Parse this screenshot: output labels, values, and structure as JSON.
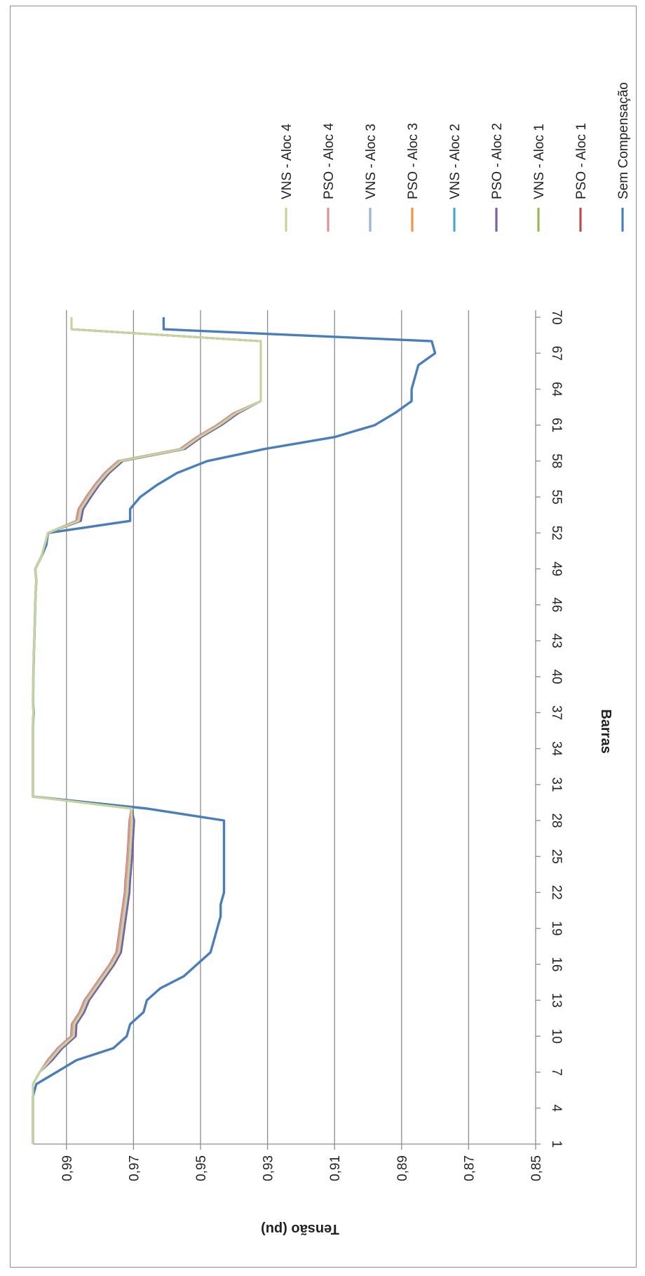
{
  "chart_data": {
    "type": "line",
    "title": "",
    "xlabel": "Barras",
    "ylabel": "Tensão  (pu)",
    "xlim": [
      1,
      70
    ],
    "ylim": [
      0.85,
      1.0
    ],
    "x_tick_labels": [
      "1",
      "4",
      "7",
      "10",
      "13",
      "16",
      "19",
      "22",
      "25",
      "28",
      "31",
      "34",
      "37",
      "40",
      "43",
      "46",
      "49",
      "52",
      "55",
      "58",
      "61",
      "64",
      "67",
      "70"
    ],
    "y_tick_labels": [
      "0,85",
      "0,87",
      "0,89",
      "0,91",
      "0,93",
      "0,95",
      "0,97",
      "0,99"
    ],
    "y_ticks": [
      0.85,
      0.87,
      0.89,
      0.91,
      0.93,
      0.95,
      0.97,
      0.99
    ],
    "grid": true,
    "legend_position": "right",
    "orientation": "rotated-90-clockwise",
    "x": [
      1,
      2,
      3,
      4,
      5,
      6,
      7,
      8,
      9,
      10,
      11,
      12,
      13,
      14,
      15,
      16,
      17,
      18,
      19,
      20,
      21,
      22,
      23,
      24,
      25,
      26,
      27,
      28,
      29,
      30,
      31,
      32,
      33,
      34,
      35,
      36,
      37,
      38,
      39,
      40,
      41,
      42,
      43,
      44,
      45,
      46,
      47,
      48,
      49,
      50,
      51,
      52,
      53,
      54,
      55,
      56,
      57,
      58,
      59,
      60,
      61,
      62,
      63,
      64,
      65,
      66,
      67,
      68,
      69,
      70
    ],
    "series": [
      {
        "name": "Sem Compensação",
        "color": "#4a7ebb",
        "values": [
          1.0,
          1.0,
          1.0,
          1.0,
          1.0,
          0.999,
          0.993,
          0.987,
          0.976,
          0.972,
          0.971,
          0.967,
          0.966,
          0.962,
          0.955,
          0.951,
          0.947,
          0.946,
          0.945,
          0.944,
          0.944,
          0.943,
          0.943,
          0.943,
          0.943,
          0.943,
          0.943,
          0.943,
          0.966,
          1.0,
          1.0,
          1.0,
          1.0,
          1.0,
          1.0,
          1.0,
          0.9998,
          1.0,
          0.9999,
          0.9999,
          0.9998,
          0.9997,
          0.9996,
          0.9995,
          0.9994,
          0.9993,
          0.9992,
          0.999,
          0.9993,
          0.9975,
          0.996,
          0.9955,
          0.971,
          0.971,
          0.968,
          0.963,
          0.957,
          0.948,
          0.931,
          0.91,
          0.898,
          0.892,
          0.887,
          0.887,
          0.886,
          0.885,
          0.88,
          0.881,
          0.961,
          0.961
        ]
      },
      {
        "name": "PSO - Aloc 1",
        "color": "#be4b48",
        "values": [
          1.0,
          1.0,
          1.0,
          1.0,
          1.0,
          1.0,
          0.998,
          0.995,
          0.992,
          0.988,
          0.9878,
          0.9855,
          0.984,
          0.9815,
          0.979,
          0.9765,
          0.9745,
          0.974,
          0.9735,
          0.973,
          0.9725,
          0.972,
          0.9718,
          0.9715,
          0.9712,
          0.971,
          0.9708,
          0.9706,
          0.9706,
          1.0,
          1.0,
          1.0,
          1.0,
          1.0,
          1.0,
          1.0,
          0.9999,
          1.0,
          0.9999,
          0.9999,
          0.9998,
          0.9997,
          0.9996,
          0.9995,
          0.9994,
          0.9993,
          0.9992,
          0.999,
          0.9993,
          0.9975,
          0.9965,
          0.9955,
          0.9865,
          0.9858,
          0.9835,
          0.981,
          0.978,
          0.974,
          0.9555,
          0.9505,
          0.9445,
          0.9395,
          0.932,
          0.932,
          0.932,
          0.932,
          0.932,
          0.932,
          0.9885,
          0.9885
        ]
      },
      {
        "name": "VNS - Aloc 1",
        "color": "#98b954",
        "values": [
          1.0,
          1.0,
          1.0,
          1.0,
          1.0,
          1.0,
          0.998,
          0.995,
          0.992,
          0.988,
          0.9878,
          0.9855,
          0.984,
          0.9815,
          0.979,
          0.9765,
          0.9745,
          0.974,
          0.9735,
          0.973,
          0.9725,
          0.972,
          0.9718,
          0.9715,
          0.9712,
          0.971,
          0.9708,
          0.9706,
          0.9706,
          1.0,
          1.0,
          1.0,
          1.0,
          1.0,
          1.0,
          1.0,
          0.9999,
          1.0,
          0.9999,
          0.9999,
          0.9998,
          0.9997,
          0.9996,
          0.9995,
          0.9994,
          0.9993,
          0.9992,
          0.999,
          0.9993,
          0.9975,
          0.9965,
          0.9955,
          0.9865,
          0.9858,
          0.9835,
          0.981,
          0.978,
          0.974,
          0.9555,
          0.9505,
          0.9445,
          0.9395,
          0.932,
          0.932,
          0.932,
          0.932,
          0.932,
          0.932,
          0.9885,
          0.9885
        ]
      },
      {
        "name": "PSO - Aloc 2",
        "color": "#7d60a0",
        "values": [
          1.0,
          1.0,
          1.0,
          1.0,
          1.0,
          1.0,
          0.998,
          0.995,
          0.992,
          0.988,
          0.9878,
          0.9855,
          0.984,
          0.9815,
          0.979,
          0.9765,
          0.9745,
          0.974,
          0.9735,
          0.973,
          0.9725,
          0.972,
          0.9718,
          0.9715,
          0.9712,
          0.971,
          0.9708,
          0.9706,
          0.9706,
          1.0,
          1.0,
          1.0,
          1.0,
          1.0,
          1.0,
          1.0,
          0.9999,
          1.0,
          0.9999,
          0.9999,
          0.9998,
          0.9997,
          0.9996,
          0.9995,
          0.9994,
          0.9993,
          0.9992,
          0.999,
          0.9993,
          0.9975,
          0.9965,
          0.9955,
          0.9865,
          0.9858,
          0.9835,
          0.981,
          0.978,
          0.974,
          0.9555,
          0.9505,
          0.9445,
          0.9395,
          0.932,
          0.932,
          0.932,
          0.932,
          0.932,
          0.932,
          0.9885,
          0.9885
        ]
      },
      {
        "name": "VNS - Aloc 2",
        "color": "#46aac5",
        "values": [
          1.0,
          1.0,
          1.0,
          1.0,
          1.0,
          1.0,
          0.998,
          0.995,
          0.992,
          0.988,
          0.9878,
          0.9855,
          0.984,
          0.9815,
          0.979,
          0.9765,
          0.9745,
          0.974,
          0.9735,
          0.973,
          0.9725,
          0.972,
          0.9718,
          0.9715,
          0.9712,
          0.971,
          0.9708,
          0.9706,
          0.9706,
          1.0,
          1.0,
          1.0,
          1.0,
          1.0,
          1.0,
          1.0,
          0.9999,
          1.0,
          0.9999,
          0.9999,
          0.9998,
          0.9997,
          0.9996,
          0.9995,
          0.9994,
          0.9993,
          0.9992,
          0.999,
          0.9993,
          0.9975,
          0.9965,
          0.9955,
          0.9865,
          0.9858,
          0.9835,
          0.981,
          0.978,
          0.974,
          0.9555,
          0.9505,
          0.9445,
          0.9395,
          0.932,
          0.932,
          0.932,
          0.932,
          0.932,
          0.932,
          0.9885,
          0.9885
        ]
      },
      {
        "name": "PSO - Aloc 3",
        "color": "#f69240",
        "values": [
          1.0,
          1.0,
          1.0,
          1.0,
          1.0,
          1.0,
          0.998,
          0.995,
          0.992,
          0.988,
          0.9878,
          0.9855,
          0.984,
          0.9815,
          0.979,
          0.9765,
          0.9745,
          0.974,
          0.9735,
          0.973,
          0.9725,
          0.972,
          0.9718,
          0.9715,
          0.9712,
          0.971,
          0.9708,
          0.9706,
          0.9706,
          1.0,
          1.0,
          1.0,
          1.0,
          1.0,
          1.0,
          1.0,
          0.9999,
          1.0,
          0.9999,
          0.9999,
          0.9998,
          0.9997,
          0.9996,
          0.9995,
          0.9994,
          0.9993,
          0.9992,
          0.999,
          0.9993,
          0.9975,
          0.9965,
          0.9955,
          0.9865,
          0.9858,
          0.9835,
          0.981,
          0.978,
          0.974,
          0.9555,
          0.9505,
          0.9445,
          0.9395,
          0.932,
          0.932,
          0.932,
          0.932,
          0.932,
          0.932,
          0.9885,
          0.9885
        ]
      },
      {
        "name": "VNS - Aloc 3",
        "color": "#98b4d9",
        "values": [
          1.0,
          1.0,
          1.0,
          1.0,
          1.0,
          1.0,
          0.998,
          0.995,
          0.992,
          0.988,
          0.9878,
          0.9855,
          0.984,
          0.9815,
          0.979,
          0.9765,
          0.9745,
          0.974,
          0.9735,
          0.973,
          0.9725,
          0.972,
          0.9718,
          0.9715,
          0.9712,
          0.971,
          0.9708,
          0.9706,
          0.9706,
          1.0,
          1.0,
          1.0,
          1.0,
          1.0,
          1.0,
          1.0,
          0.9999,
          1.0,
          0.9999,
          0.9999,
          0.9998,
          0.9997,
          0.9996,
          0.9995,
          0.9994,
          0.9993,
          0.9992,
          0.999,
          0.9993,
          0.9975,
          0.9965,
          0.9955,
          0.9865,
          0.9858,
          0.9835,
          0.981,
          0.978,
          0.974,
          0.9555,
          0.9505,
          0.9445,
          0.9395,
          0.932,
          0.932,
          0.932,
          0.932,
          0.932,
          0.932,
          0.9885,
          0.9885
        ]
      },
      {
        "name": "PSO - Aloc 4",
        "color": "#d99694",
        "values": [
          1.0,
          1.0,
          1.0,
          1.0,
          1.0,
          1.0,
          0.998,
          0.995,
          0.992,
          0.988,
          0.9878,
          0.9855,
          0.984,
          0.9815,
          0.979,
          0.9765,
          0.9745,
          0.974,
          0.9735,
          0.973,
          0.9725,
          0.972,
          0.9718,
          0.9715,
          0.9712,
          0.971,
          0.9708,
          0.9706,
          0.9706,
          1.0,
          1.0,
          1.0,
          1.0,
          1.0,
          1.0,
          1.0,
          0.9999,
          1.0,
          0.9999,
          0.9999,
          0.9998,
          0.9997,
          0.9996,
          0.9995,
          0.9994,
          0.9993,
          0.9992,
          0.999,
          0.9993,
          0.9975,
          0.9965,
          0.9955,
          0.9865,
          0.9858,
          0.9835,
          0.981,
          0.978,
          0.974,
          0.9555,
          0.9505,
          0.9445,
          0.9395,
          0.932,
          0.932,
          0.932,
          0.932,
          0.932,
          0.932,
          0.9885,
          0.9885
        ]
      },
      {
        "name": "VNS - Aloc 4",
        "color": "#c3d69b",
        "values": [
          1.0,
          1.0,
          1.0,
          1.0,
          1.0,
          1.0,
          0.998,
          0.995,
          0.992,
          0.988,
          0.9878,
          0.9855,
          0.984,
          0.9815,
          0.979,
          0.9765,
          0.9745,
          0.974,
          0.9735,
          0.973,
          0.9725,
          0.972,
          0.9718,
          0.9715,
          0.9712,
          0.971,
          0.9708,
          0.9706,
          0.9706,
          1.0,
          1.0,
          1.0,
          1.0,
          1.0,
          1.0,
          1.0,
          0.9999,
          1.0,
          0.9999,
          0.9999,
          0.9998,
          0.9997,
          0.9996,
          0.9995,
          0.9994,
          0.9993,
          0.9992,
          0.999,
          0.9993,
          0.9975,
          0.9965,
          0.9955,
          0.9865,
          0.9858,
          0.9835,
          0.981,
          0.978,
          0.974,
          0.9555,
          0.9505,
          0.9445,
          0.9395,
          0.932,
          0.932,
          0.932,
          0.932,
          0.932,
          0.932,
          0.9885,
          0.9885
        ]
      }
    ]
  }
}
